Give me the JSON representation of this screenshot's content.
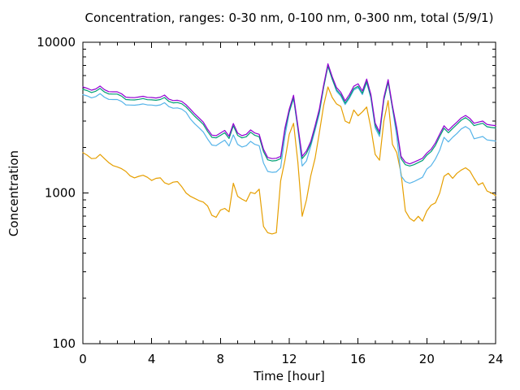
{
  "chart_data": {
    "type": "line",
    "title": "Concentration, ranges: 0-30 nm, 0-100 nm, 0-300 nm, total (5/9/1)",
    "xlabel": "Time [hour]",
    "ylabel": "Concentration",
    "x_range": [
      0,
      24
    ],
    "x_major_ticks": [
      0,
      4,
      8,
      12,
      16,
      20,
      24
    ],
    "x_minor_step": 1,
    "y_scale": "log",
    "y_range": [
      100,
      10000
    ],
    "y_major_ticks": [
      100,
      1000,
      10000
    ],
    "y_minor_multiples": [
      2,
      3,
      4,
      5,
      6,
      7,
      8,
      9
    ],
    "grid": false,
    "legend": "none",
    "frame_color": "#000000",
    "x_start": 0,
    "x_step": 0.25,
    "series": [
      {
        "name": "0-30 nm",
        "color": "#e69f00",
        "values": [
          1850,
          1780,
          1690,
          1700,
          1800,
          1690,
          1590,
          1520,
          1490,
          1450,
          1390,
          1300,
          1260,
          1290,
          1310,
          1270,
          1210,
          1250,
          1260,
          1170,
          1140,
          1180,
          1190,
          1100,
          1000,
          950,
          920,
          890,
          870,
          820,
          710,
          690,
          770,
          790,
          750,
          1160,
          950,
          910,
          880,
          1010,
          990,
          1060,
          600,
          545,
          535,
          545,
          1200,
          1650,
          2450,
          2900,
          1600,
          700,
          900,
          1300,
          1700,
          2500,
          3800,
          5050,
          4300,
          3900,
          3750,
          3000,
          2900,
          3550,
          3250,
          3450,
          3720,
          2700,
          1800,
          1650,
          3000,
          4100,
          2100,
          1850,
          1350,
          760,
          680,
          650,
          700,
          650,
          760,
          830,
          860,
          1000,
          1290,
          1350,
          1250,
          1350,
          1420,
          1470,
          1400,
          1250,
          1130,
          1170,
          1030,
          1000,
          960
        ]
      },
      {
        "name": "0-100 nm",
        "color": "#56b4e9",
        "values": [
          4490,
          4410,
          4280,
          4360,
          4560,
          4320,
          4180,
          4170,
          4170,
          4050,
          3840,
          3830,
          3820,
          3850,
          3900,
          3840,
          3830,
          3800,
          3840,
          3970,
          3740,
          3650,
          3670,
          3600,
          3430,
          3100,
          2880,
          2710,
          2540,
          2280,
          2080,
          2060,
          2150,
          2240,
          2050,
          2430,
          2100,
          2020,
          2060,
          2200,
          2100,
          2060,
          1580,
          1390,
          1370,
          1380,
          1470,
          2380,
          3420,
          4230,
          2660,
          1510,
          1630,
          2050,
          2600,
          3350,
          5020,
          6950,
          5690,
          4730,
          4390,
          3860,
          4250,
          4820,
          5010,
          4490,
          5390,
          4250,
          2700,
          2370,
          4130,
          5420,
          3650,
          2380,
          1300,
          1190,
          1160,
          1190,
          1230,
          1270,
          1440,
          1520,
          1680,
          1920,
          2340,
          2180,
          2340,
          2480,
          2660,
          2760,
          2640,
          2290,
          2330,
          2370,
          2250,
          2230,
          2210
        ]
      },
      {
        "name": "0-300 nm",
        "color": "#009e73",
        "values": [
          4870,
          4780,
          4640,
          4730,
          4940,
          4680,
          4540,
          4530,
          4530,
          4390,
          4170,
          4150,
          4140,
          4180,
          4230,
          4160,
          4150,
          4120,
          4170,
          4300,
          4050,
          3960,
          3980,
          3910,
          3720,
          3470,
          3230,
          3040,
          2850,
          2560,
          2340,
          2320,
          2410,
          2510,
          2300,
          2790,
          2410,
          2320,
          2360,
          2530,
          2410,
          2360,
          1880,
          1660,
          1630,
          1640,
          1690,
          2610,
          3470,
          4290,
          2700,
          1690,
          1830,
          2120,
          2700,
          3470,
          5020,
          6950,
          5690,
          4830,
          4490,
          3940,
          4340,
          4920,
          5110,
          4580,
          5500,
          4340,
          2800,
          2460,
          4150,
          5450,
          3670,
          2610,
          1690,
          1540,
          1510,
          1540,
          1590,
          1640,
          1780,
          1880,
          2070,
          2370,
          2690,
          2510,
          2680,
          2850,
          3040,
          3160,
          3010,
          2800,
          2850,
          2900,
          2750,
          2720,
          2700
        ]
      },
      {
        "name": "total",
        "color": "#9400d3",
        "values": [
          5050,
          4950,
          4810,
          4900,
          5120,
          4850,
          4700,
          4690,
          4690,
          4550,
          4320,
          4300,
          4290,
          4330,
          4380,
          4310,
          4300,
          4270,
          4320,
          4460,
          4200,
          4100,
          4120,
          4050,
          3850,
          3600,
          3350,
          3150,
          2950,
          2650,
          2420,
          2400,
          2500,
          2600,
          2380,
          2890,
          2500,
          2400,
          2450,
          2620,
          2500,
          2450,
          1950,
          1720,
          1690,
          1700,
          1750,
          2700,
          3600,
          4450,
          2800,
          1750,
          1900,
          2200,
          2800,
          3600,
          5200,
          7200,
          5900,
          5000,
          4650,
          4080,
          4500,
          5100,
          5300,
          4750,
          5700,
          4500,
          2900,
          2550,
          4300,
          5650,
          3800,
          2700,
          1750,
          1600,
          1560,
          1600,
          1650,
          1700,
          1840,
          1950,
          2150,
          2460,
          2790,
          2600,
          2780,
          2950,
          3150,
          3270,
          3120,
          2900,
          2950,
          3000,
          2850,
          2820,
          2800
        ]
      }
    ]
  }
}
